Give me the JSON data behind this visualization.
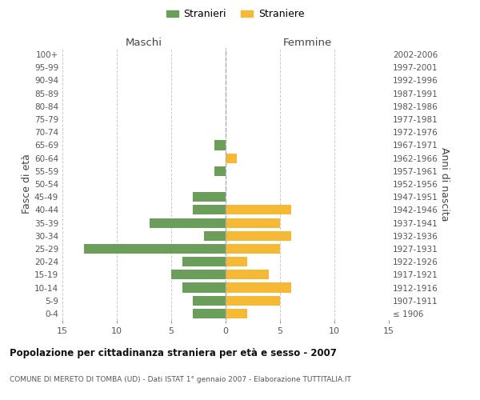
{
  "age_groups": [
    "100+",
    "95-99",
    "90-94",
    "85-89",
    "80-84",
    "75-79",
    "70-74",
    "65-69",
    "60-64",
    "55-59",
    "50-54",
    "45-49",
    "40-44",
    "35-39",
    "30-34",
    "25-29",
    "20-24",
    "15-19",
    "10-14",
    "5-9",
    "0-4"
  ],
  "birth_years": [
    "≤ 1906",
    "1907-1911",
    "1912-1916",
    "1917-1921",
    "1922-1926",
    "1927-1931",
    "1932-1936",
    "1937-1941",
    "1942-1946",
    "1947-1951",
    "1952-1956",
    "1957-1961",
    "1962-1966",
    "1967-1971",
    "1972-1976",
    "1977-1981",
    "1982-1986",
    "1987-1991",
    "1992-1996",
    "1997-2001",
    "2002-2006"
  ],
  "maschi": [
    0,
    0,
    0,
    0,
    0,
    0,
    0,
    1,
    0,
    1,
    0,
    3,
    3,
    7,
    2,
    13,
    4,
    5,
    4,
    3,
    3
  ],
  "femmine": [
    0,
    0,
    0,
    0,
    0,
    0,
    0,
    0,
    1,
    0,
    0,
    0,
    6,
    5,
    6,
    5,
    2,
    4,
    6,
    5,
    2
  ],
  "male_color": "#6a9e5a",
  "female_color": "#f5b935",
  "bg_color": "#ffffff",
  "grid_color": "#cccccc",
  "xlim": 15,
  "title": "Popolazione per cittadinanza straniera per età e sesso - 2007",
  "subtitle": "COMUNE DI MERETO DI TOMBA (UD) - Dati ISTAT 1° gennaio 2007 - Elaborazione TUTTITALIA.IT",
  "ylabel_left": "Fasce di età",
  "ylabel_right": "Anni di nascita",
  "xlabel_left": "Maschi",
  "xlabel_right": "Femmine",
  "legend_male": "Stranieri",
  "legend_female": "Straniere"
}
